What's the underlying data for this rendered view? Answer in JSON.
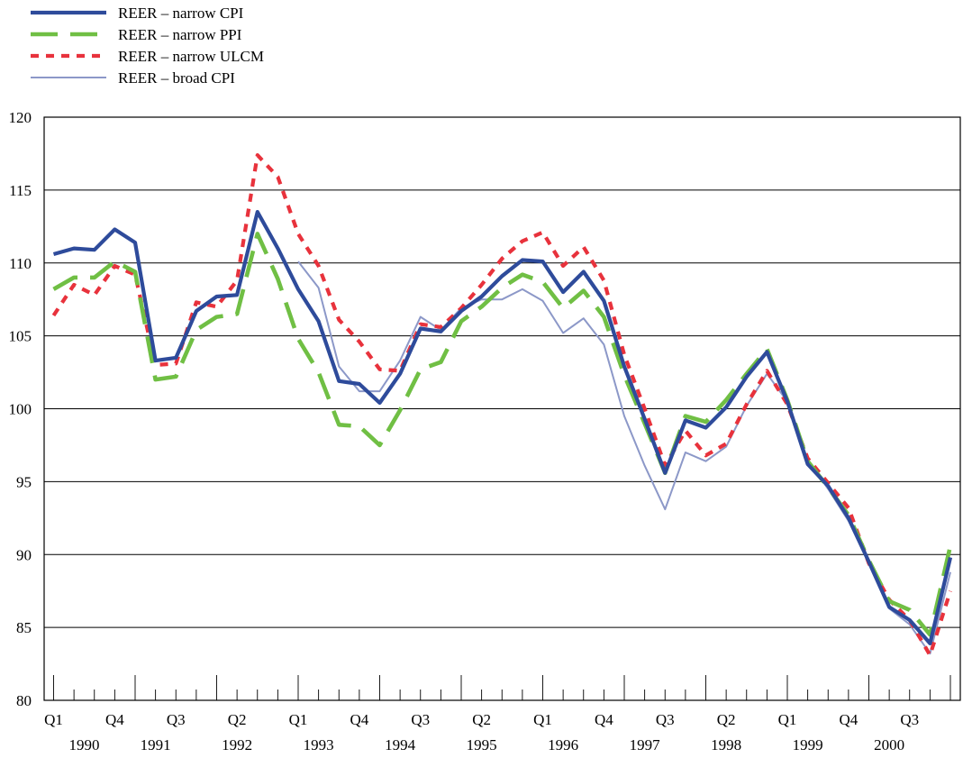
{
  "chart_data": {
    "type": "line",
    "title": "",
    "xlabel": "",
    "ylabel": "",
    "ylim": [
      80,
      120
    ],
    "yticks": [
      80,
      85,
      90,
      95,
      100,
      105,
      110,
      115,
      120
    ],
    "grid": "horizontal",
    "legend_position": "top-left",
    "x": [
      "1990 Q1",
      "1990 Q2",
      "1990 Q3",
      "1990 Q4",
      "1991 Q1",
      "1991 Q2",
      "1991 Q3",
      "1991 Q4",
      "1992 Q1",
      "1992 Q2",
      "1992 Q3",
      "1992 Q4",
      "1993 Q1",
      "1993 Q2",
      "1993 Q3",
      "1993 Q4",
      "1994 Q1",
      "1994 Q2",
      "1994 Q3",
      "1994 Q4",
      "1995 Q1",
      "1995 Q2",
      "1995 Q3",
      "1995 Q4",
      "1996 Q1",
      "1996 Q2",
      "1996 Q3",
      "1996 Q4",
      "1997 Q1",
      "1997 Q2",
      "1997 Q3",
      "1997 Q4",
      "1998 Q1",
      "1998 Q2",
      "1998 Q3",
      "1998 Q4",
      "1999 Q1",
      "1999 Q2",
      "1999 Q3",
      "1999 Q4",
      "2000 Q1",
      "2000 Q2",
      "2000 Q3",
      "2000 Q4",
      "2001 Q1"
    ],
    "quarter_labels": [
      {
        "label": "Q1",
        "year": "1990",
        "index": 0
      },
      {
        "label": "Q4",
        "year": "1990",
        "index": 3
      },
      {
        "label": "Q3",
        "year": "1991",
        "index": 6
      },
      {
        "label": "Q2",
        "year": "1992",
        "index": 9
      },
      {
        "label": "Q1",
        "year": "1993",
        "index": 12
      },
      {
        "label": "Q4",
        "year": "1993",
        "index": 15
      },
      {
        "label": "Q3",
        "year": "1994",
        "index": 18
      },
      {
        "label": "Q2",
        "year": "1995",
        "index": 21
      },
      {
        "label": "Q1",
        "year": "1996",
        "index": 24
      },
      {
        "label": "Q4",
        "year": "1996",
        "index": 27
      },
      {
        "label": "Q3",
        "year": "1997",
        "index": 30
      },
      {
        "label": "Q2",
        "year": "1998",
        "index": 33
      },
      {
        "label": "Q1",
        "year": "1999",
        "index": 36
      },
      {
        "label": "Q4",
        "year": "1999",
        "index": 39
      },
      {
        "label": "Q3",
        "year": "2000",
        "index": 42
      }
    ],
    "year_labels": [
      {
        "label": "1990",
        "index": 1.5
      },
      {
        "label": "1991",
        "index": 5
      },
      {
        "label": "1992",
        "index": 9
      },
      {
        "label": "1993",
        "index": 13
      },
      {
        "label": "1994",
        "index": 17
      },
      {
        "label": "1995",
        "index": 21
      },
      {
        "label": "1996",
        "index": 25
      },
      {
        "label": "1997",
        "index": 29
      },
      {
        "label": "1998",
        "index": 33
      },
      {
        "label": "1999",
        "index": 37
      },
      {
        "label": "2000",
        "index": 41
      }
    ],
    "series": [
      {
        "name": "REER – narrow CPI",
        "color": "#2e4b9b",
        "style": "solid-thick",
        "values": [
          110.6,
          111.0,
          110.9,
          112.3,
          111.4,
          103.3,
          103.5,
          106.7,
          107.7,
          107.8,
          113.5,
          111.0,
          108.2,
          106.0,
          101.9,
          101.7,
          100.4,
          102.4,
          105.5,
          105.3,
          106.7,
          107.7,
          109.1,
          110.2,
          110.1,
          108.0,
          109.4,
          107.4,
          102.9,
          99.3,
          95.6,
          99.2,
          98.7,
          100.1,
          102.2,
          103.9,
          100.5,
          96.2,
          94.7,
          92.5,
          89.5,
          86.4,
          85.5,
          83.9,
          89.8
        ]
      },
      {
        "name": "REER – narrow PPI",
        "color": "#70bf44",
        "style": "long-dash",
        "values": [
          108.2,
          109.0,
          109.0,
          110.1,
          109.4,
          102.0,
          102.2,
          105.4,
          106.3,
          106.5,
          112.0,
          108.9,
          104.8,
          102.5,
          98.9,
          98.8,
          97.5,
          99.9,
          102.7,
          103.2,
          106.0,
          107.0,
          108.3,
          109.2,
          108.7,
          106.9,
          108.1,
          106.3,
          102.3,
          99.0,
          95.6,
          99.5,
          99.1,
          100.6,
          102.4,
          104.1,
          100.6,
          96.4,
          94.6,
          92.7,
          89.6,
          86.8,
          86.2,
          84.5,
          90.6
        ]
      },
      {
        "name": "REER – narrow ULCM",
        "color": "#e8323c",
        "style": "short-dash",
        "values": [
          106.4,
          108.5,
          107.8,
          109.8,
          109.2,
          103.0,
          103.1,
          107.3,
          107.0,
          108.8,
          117.4,
          115.9,
          112.0,
          109.8,
          106.1,
          104.6,
          102.7,
          102.6,
          105.8,
          105.6,
          106.9,
          108.5,
          110.3,
          111.5,
          112.1,
          109.8,
          111.1,
          108.8,
          103.7,
          100.0,
          96.1,
          98.5,
          96.8,
          97.6,
          100.3,
          102.6,
          100.3,
          96.6,
          94.9,
          93.2,
          89.4,
          86.9,
          85.5,
          83.1,
          87.5
        ]
      },
      {
        "name": "REER – broad CPI",
        "color": "#8c98c8",
        "style": "thin",
        "values": [
          null,
          null,
          null,
          null,
          null,
          null,
          null,
          null,
          null,
          null,
          null,
          null,
          110.1,
          108.3,
          102.9,
          101.2,
          101.2,
          103.3,
          106.3,
          105.4,
          106.9,
          107.5,
          107.5,
          108.2,
          107.4,
          105.2,
          106.2,
          104.4,
          99.5,
          96.1,
          93.1,
          97.0,
          96.4,
          97.4,
          100.2,
          102.4,
          100.5,
          96.5,
          94.5,
          92.3,
          89.4,
          86.3,
          85.2,
          83.2,
          88.8
        ]
      }
    ]
  }
}
